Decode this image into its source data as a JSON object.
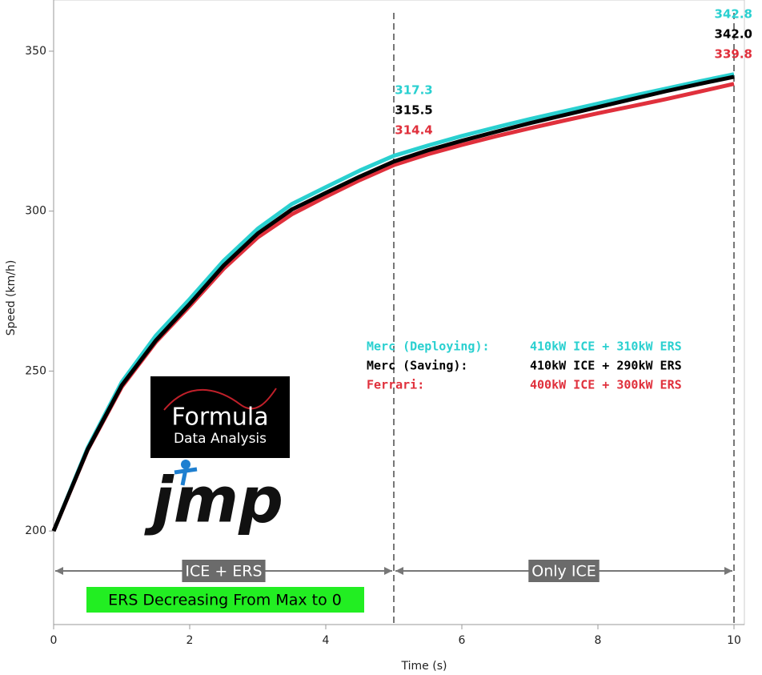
{
  "chart_data": {
    "type": "line",
    "x_label": "Time (s)",
    "y_label": "Speed (km/h)",
    "x": [
      0,
      0.5,
      1,
      1.5,
      2,
      2.5,
      3,
      3.5,
      4,
      4.5,
      5,
      5.5,
      6,
      6.5,
      7,
      7.5,
      8,
      8.5,
      9,
      9.5,
      10
    ],
    "series": [
      {
        "name": "Merc (Deploying):",
        "description": "410kW ICE + 310kW ERS",
        "color": "#2ad0d0",
        "values": [
          200,
          226,
          246.5,
          261,
          272.5,
          284.5,
          294.5,
          302.2,
          307.5,
          312.7,
          317.3,
          320.5,
          323.5,
          326.2,
          328.8,
          331.2,
          333.6,
          336,
          338.3,
          340.6,
          342.8
        ],
        "value_labels": [
          null,
          null,
          null,
          null,
          null,
          null,
          null,
          null,
          null,
          null,
          "317.3",
          null,
          null,
          null,
          null,
          null,
          null,
          null,
          null,
          null,
          "342.8"
        ]
      },
      {
        "name": "Merc (Saving):",
        "description": "410kW ICE + 290kW ERS",
        "color": "#000000",
        "values": [
          200,
          225.5,
          245.5,
          259.5,
          271,
          283,
          293,
          300.5,
          305.7,
          310.8,
          315.5,
          319,
          322,
          324.8,
          327.5,
          330,
          332.5,
          335,
          337.5,
          339.8,
          342.0
        ],
        "value_labels": [
          null,
          null,
          null,
          null,
          null,
          null,
          null,
          null,
          null,
          null,
          "315.5",
          null,
          null,
          null,
          null,
          null,
          null,
          null,
          null,
          null,
          "342.0"
        ]
      },
      {
        "name": "Ferrari:",
        "description": "400kW ICE + 300kW ERS",
        "color": "#e0303c",
        "values": [
          200,
          225.3,
          245,
          259,
          270.3,
          282,
          291.8,
          299,
          304.5,
          309.7,
          314.4,
          317.8,
          320.7,
          323.4,
          325.9,
          328.3,
          330.6,
          332.8,
          335,
          337.4,
          339.8
        ],
        "value_labels": [
          null,
          null,
          null,
          null,
          null,
          null,
          null,
          null,
          null,
          null,
          "314.4",
          null,
          null,
          null,
          null,
          null,
          null,
          null,
          null,
          null,
          "339.8"
        ]
      }
    ],
    "xlim": [
      0,
      10.2
    ],
    "ylim": [
      170.75,
      362
    ],
    "xticks": [
      0,
      2,
      4,
      6,
      8,
      10
    ],
    "yticks": [
      200,
      250,
      300,
      350
    ],
    "vlines": [
      5,
      10
    ],
    "phases": [
      "ICE + ERS",
      "Only ICE"
    ],
    "note": "ERS Decreasing From Max to 0",
    "logo": {
      "title": "Formula",
      "subtitle": "Data Analysis",
      "brand": "jmp"
    }
  }
}
